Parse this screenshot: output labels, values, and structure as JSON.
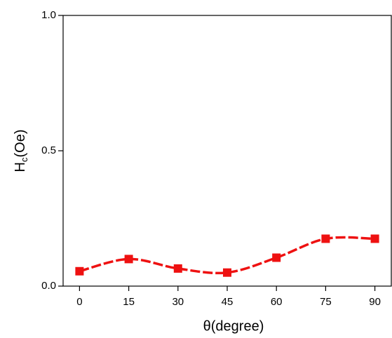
{
  "chart_data": {
    "type": "line",
    "xlabel": "θ(degree)",
    "ylabel": {
      "main": "H",
      "sub": "c",
      "unit": "(Oe)"
    },
    "x": [
      0,
      15,
      30,
      45,
      60,
      75,
      90
    ],
    "series": [
      {
        "color": "#ee1111",
        "values": [
          0.055,
          0.1,
          0.065,
          0.05,
          0.105,
          0.175,
          0.175
        ]
      }
    ],
    "xlim": [
      -5,
      95
    ],
    "xticks": [
      0,
      15,
      30,
      45,
      60,
      75,
      90
    ],
    "ylim": [
      0,
      1
    ],
    "yticks": [
      {
        "value": 0,
        "label": "0.0"
      },
      {
        "value": 0.5,
        "label": "0.5"
      },
      {
        "value": 1,
        "label": "1.0"
      }
    ],
    "grid": false
  }
}
